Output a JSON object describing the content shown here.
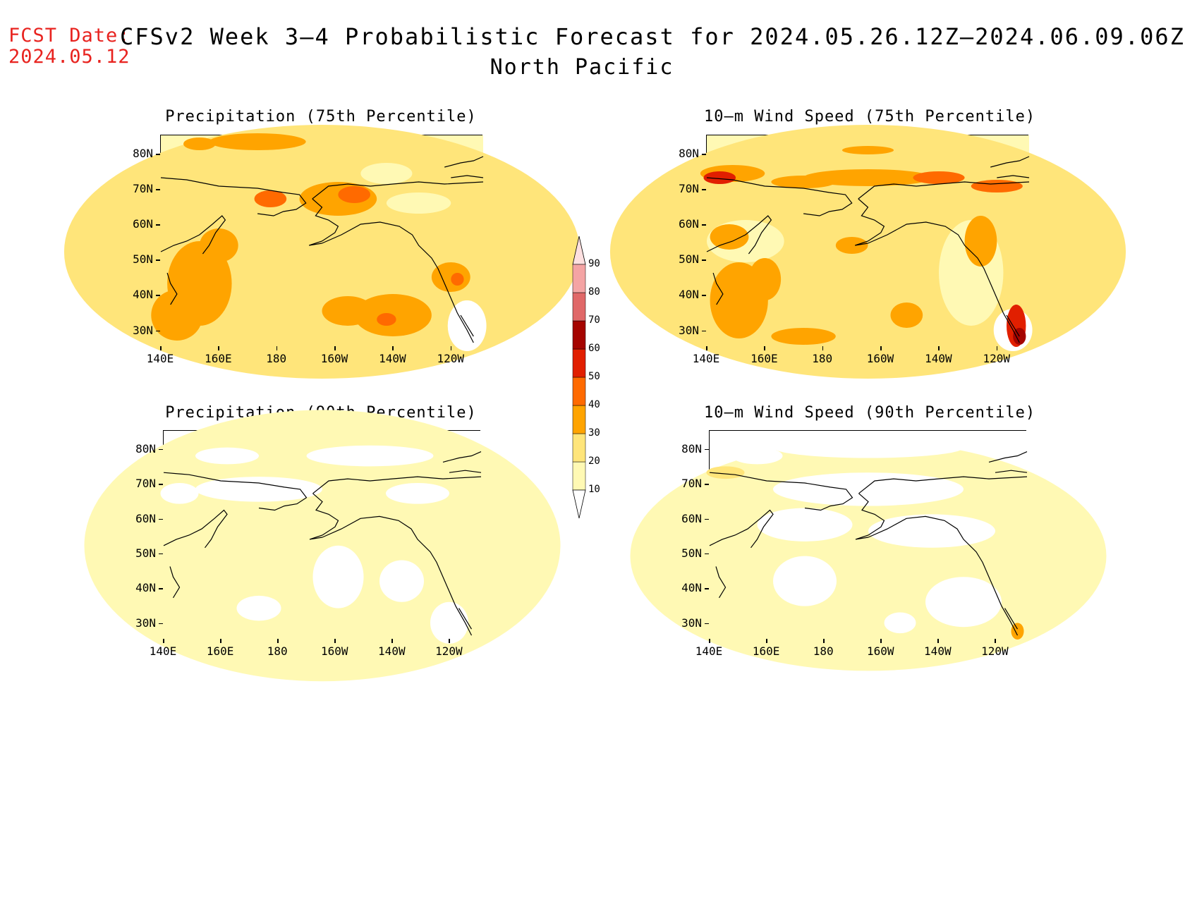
{
  "header": {
    "fcst_label": "FCST Date:",
    "fcst_date": "2024.05.12",
    "title": "CFSv2 Week 3–4 Probabilistic Forecast for 2024.05.26.12Z–2024.06.09.06Z",
    "region": "North Pacific"
  },
  "axes": {
    "lat_labels": [
      "80N",
      "70N",
      "60N",
      "50N",
      "40N",
      "30N"
    ],
    "lon_labels": [
      "140E",
      "160E",
      "180",
      "160W",
      "140W",
      "120W"
    ]
  },
  "panels": [
    {
      "title": "Precipitation (75th Percentile)"
    },
    {
      "title": "10–m Wind Speed (75th Percentile)"
    },
    {
      "title": "Precipitation (90th Percentile)"
    },
    {
      "title": "10–m Wind Speed (90th Percentile)"
    }
  ],
  "colorbar": {
    "levels": [
      "10",
      "20",
      "30",
      "40",
      "50",
      "60",
      "70",
      "80",
      "90"
    ],
    "colors": [
      "#fff9b4",
      "#ffe57a",
      "#ffa400",
      "#ff6a00",
      "#e11f00",
      "#a50400",
      "#e06868",
      "#f4a4a4",
      "#fde0e0"
    ]
  }
}
